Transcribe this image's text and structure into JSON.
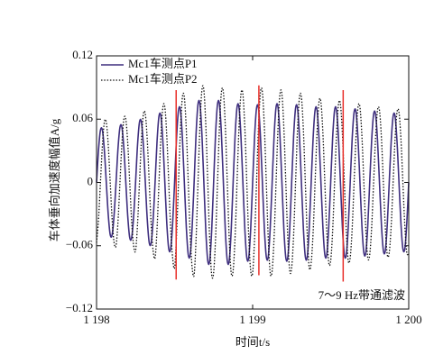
{
  "chart_data": {
    "type": "line",
    "xlabel": "时间t/s",
    "ylabel": "车体垂向加速度幅值A/g",
    "annotation": "7～9 Hz带通滤波",
    "xlim": [
      1198,
      1200
    ],
    "ylim": [
      -0.12,
      0.12
    ],
    "xticks": [
      {
        "value": 1198,
        "label": "1 198"
      },
      {
        "value": 1199,
        "label": "1 199"
      },
      {
        "value": 1200,
        "label": "1 200"
      }
    ],
    "yticks": [
      {
        "value": -0.12,
        "label": "−0.12"
      },
      {
        "value": -0.06,
        "label": "−0.06"
      },
      0,
      0.06,
      0.12
    ],
    "legend": "upper left",
    "vlines": [
      {
        "x": 1198.51,
        "y": [
          -0.092,
          0.0875
        ],
        "color": "#e8302a"
      },
      {
        "x": 1199.04,
        "y": [
          -0.088,
          0.092
        ],
        "color": "#e8302a"
      },
      {
        "x": 1199.58,
        "y": [
          -0.094,
          0.0875
        ],
        "color": "#e8302a"
      }
    ],
    "x": [
      1198,
      1198.0125,
      1198.025,
      1198.0375,
      1198.05,
      1198.0625,
      1198.075,
      1198.0875,
      1198.1,
      1198.1125,
      1198.125,
      1198.1375,
      1198.15,
      1198.1625,
      1198.175,
      1198.1875,
      1198.2,
      1198.2125,
      1198.225,
      1198.2375,
      1198.25,
      1198.2625,
      1198.275,
      1198.2875,
      1198.3,
      1198.3125,
      1198.325,
      1198.3375,
      1198.35,
      1198.3625,
      1198.375,
      1198.3875,
      1198.4,
      1198.4125,
      1198.425,
      1198.4375,
      1198.45,
      1198.4625,
      1198.475,
      1198.4875,
      1198.5,
      1198.5125,
      1198.525,
      1198.5375,
      1198.55,
      1198.5625,
      1198.575,
      1198.5875,
      1198.6,
      1198.6125,
      1198.625,
      1198.6375,
      1198.65,
      1198.6625,
      1198.675,
      1198.6875,
      1198.7,
      1198.7125,
      1198.725,
      1198.7375,
      1198.75,
      1198.7625,
      1198.775,
      1198.7875,
      1198.8,
      1198.8125,
      1198.825,
      1198.8375,
      1198.85,
      1198.8625,
      1198.875,
      1198.8875,
      1198.9,
      1198.9125,
      1198.925,
      1198.9375,
      1198.95,
      1198.9625,
      1198.975,
      1198.9875,
      1199,
      1199.0125,
      1199.025,
      1199.0375,
      1199.05,
      1199.0625,
      1199.075,
      1199.0875,
      1199.1,
      1199.1125,
      1199.125,
      1199.1375,
      1199.15,
      1199.1625,
      1199.175,
      1199.1875,
      1199.2,
      1199.2125,
      1199.225,
      1199.2375,
      1199.25,
      1199.2625,
      1199.275,
      1199.2875,
      1199.3,
      1199.3125,
      1199.325,
      1199.3375,
      1199.35,
      1199.3625,
      1199.375,
      1199.3875,
      1199.4,
      1199.4125,
      1199.425,
      1199.4375,
      1199.45,
      1199.4625,
      1199.475,
      1199.4875,
      1199.5,
      1199.5125,
      1199.525,
      1199.5375,
      1199.55,
      1199.5625,
      1199.575,
      1199.5875,
      1199.6,
      1199.6125,
      1199.625,
      1199.6375,
      1199.65,
      1199.6625,
      1199.675,
      1199.6875,
      1199.7,
      1199.7125,
      1199.725,
      1199.7375,
      1199.75,
      1199.7625,
      1199.775,
      1199.7875,
      1199.8,
      1199.8125,
      1199.825,
      1199.8375,
      1199.85,
      1199.8625,
      1199.875,
      1199.8875,
      1199.9,
      1199.9125,
      1199.925,
      1199.9375,
      1199.95,
      1199.9625,
      1199.975,
      1199.9875,
      1200
    ],
    "series": [
      {
        "name": "Mc1车测点P1",
        "color": "#3f2f7f",
        "dash": "solid",
        "values": [
          0,
          0.0306,
          0.0495,
          0.0495,
          0.0306,
          0,
          -0.0306,
          -0.0495,
          -0.0495,
          -0.0306,
          0,
          0.0323,
          0.0523,
          0.0523,
          0.0323,
          0,
          -0.0323,
          -0.0523,
          -0.0523,
          -0.0323,
          0,
          0.0353,
          0.0571,
          0.0571,
          0.0353,
          0,
          -0.0353,
          -0.0571,
          -0.0571,
          -0.0353,
          0,
          0.0388,
          0.0628,
          0.0628,
          0.0388,
          0,
          -0.0388,
          -0.0628,
          -0.0628,
          -0.0388,
          0,
          0.0423,
          0.0685,
          0.0685,
          0.0423,
          0,
          -0.0423,
          -0.0685,
          -0.0685,
          -0.0423,
          0,
          0.0459,
          0.0742,
          0.0742,
          0.0459,
          0,
          -0.0459,
          -0.0742,
          -0.0742,
          -0.0459,
          0,
          0.0459,
          0.0742,
          0.0742,
          0.0459,
          0,
          -0.0459,
          -0.0742,
          -0.0742,
          -0.0459,
          0,
          0.0441,
          0.0713,
          0.0713,
          0.0441,
          0,
          -0.0441,
          -0.0713,
          -0.0713,
          -0.0441,
          0,
          0.0435,
          0.0704,
          0.0704,
          0.0435,
          0,
          -0.0435,
          -0.0704,
          -0.0704,
          -0.0435,
          0,
          0.0441,
          0.0713,
          0.0713,
          0.0441,
          0,
          -0.0441,
          -0.0713,
          -0.0713,
          -0.0441,
          0,
          0.0435,
          0.0704,
          0.0704,
          0.0435,
          0,
          -0.0435,
          -0.0704,
          -0.0704,
          -0.0435,
          0,
          0.0423,
          0.0685,
          0.0685,
          0.0423,
          0,
          -0.0423,
          -0.0685,
          -0.0685,
          -0.0423,
          0,
          0.0423,
          0.0685,
          0.0685,
          0.0423,
          0,
          -0.0423,
          -0.0685,
          -0.0685,
          -0.0423,
          0,
          0.0412,
          0.0666,
          0.0666,
          0.0412,
          0,
          -0.0412,
          -0.0666,
          -0.0666,
          -0.0412,
          0,
          0.04,
          0.0647,
          0.0647,
          0.04,
          0,
          -0.04,
          -0.0647,
          -0.0647,
          -0.04,
          0,
          0.0388,
          0.0628,
          0.0628,
          0.0388,
          0,
          -0.0388,
          -0.0628,
          -0.0628,
          -0.0388,
          0
        ]
      },
      {
        "name": "Mc1车测点P2",
        "color": "#111111",
        "dash": "dotted",
        "values": [
          -0.0571,
          -0.0353,
          0,
          0.0353,
          0.0571,
          0.0571,
          0.0353,
          0,
          -0.0353,
          -0.0571,
          -0.0599,
          -0.037,
          0,
          0.037,
          0.0599,
          0.0599,
          0.037,
          0,
          -0.037,
          -0.0599,
          -0.0647,
          -0.04,
          0,
          0.04,
          0.0647,
          0.0647,
          0.04,
          0,
          -0.04,
          -0.0647,
          -0.0713,
          -0.0441,
          0,
          0.0441,
          0.0713,
          0.0713,
          0.0441,
          0,
          -0.0441,
          -0.0713,
          -0.0808,
          -0.05,
          0,
          0.05,
          0.0808,
          0.0808,
          0.05,
          0,
          -0.05,
          -0.0808,
          -0.0875,
          -0.0541,
          0,
          0.0541,
          0.0875,
          0.0875,
          0.0541,
          0,
          -0.0541,
          -0.0875,
          -0.0856,
          -0.0529,
          0,
          0.0529,
          0.0856,
          0.0856,
          0.0529,
          0,
          -0.0529,
          -0.0856,
          -0.0837,
          -0.0517,
          0,
          0.0517,
          0.0837,
          0.0837,
          0.0517,
          0,
          -0.0517,
          -0.0837,
          -0.0856,
          -0.0529,
          0,
          0.0529,
          0.0856,
          0.0856,
          0.0529,
          0,
          -0.0529,
          -0.0856,
          -0.0837,
          -0.0517,
          0,
          0.0517,
          0.0837,
          0.0837,
          0.0517,
          0,
          -0.0517,
          -0.0837,
          -0.0808,
          -0.05,
          0,
          0.05,
          0.0808,
          0.0808,
          0.05,
          0,
          -0.05,
          -0.0808,
          -0.0761,
          -0.047,
          0,
          0.047,
          0.0761,
          0.0761,
          0.047,
          0,
          -0.047,
          -0.0761,
          -0.0742,
          -0.0459,
          0,
          0.0459,
          0.0742,
          0.0742,
          0.0459,
          0,
          -0.0459,
          -0.0742,
          -0.0713,
          -0.0441,
          0,
          0.0441,
          0.0713,
          0.0713,
          0.0441,
          0,
          -0.0441,
          -0.0713,
          -0.0685,
          -0.0423,
          0,
          0.0423,
          0.0685,
          0.0685,
          0.0423,
          0,
          -0.0423,
          -0.0685,
          -0.0666,
          -0.0412,
          0,
          0.0412,
          0.0666,
          0.0666,
          0.0412,
          0,
          -0.0412,
          -0.0666,
          -0.0666
        ]
      }
    ]
  }
}
